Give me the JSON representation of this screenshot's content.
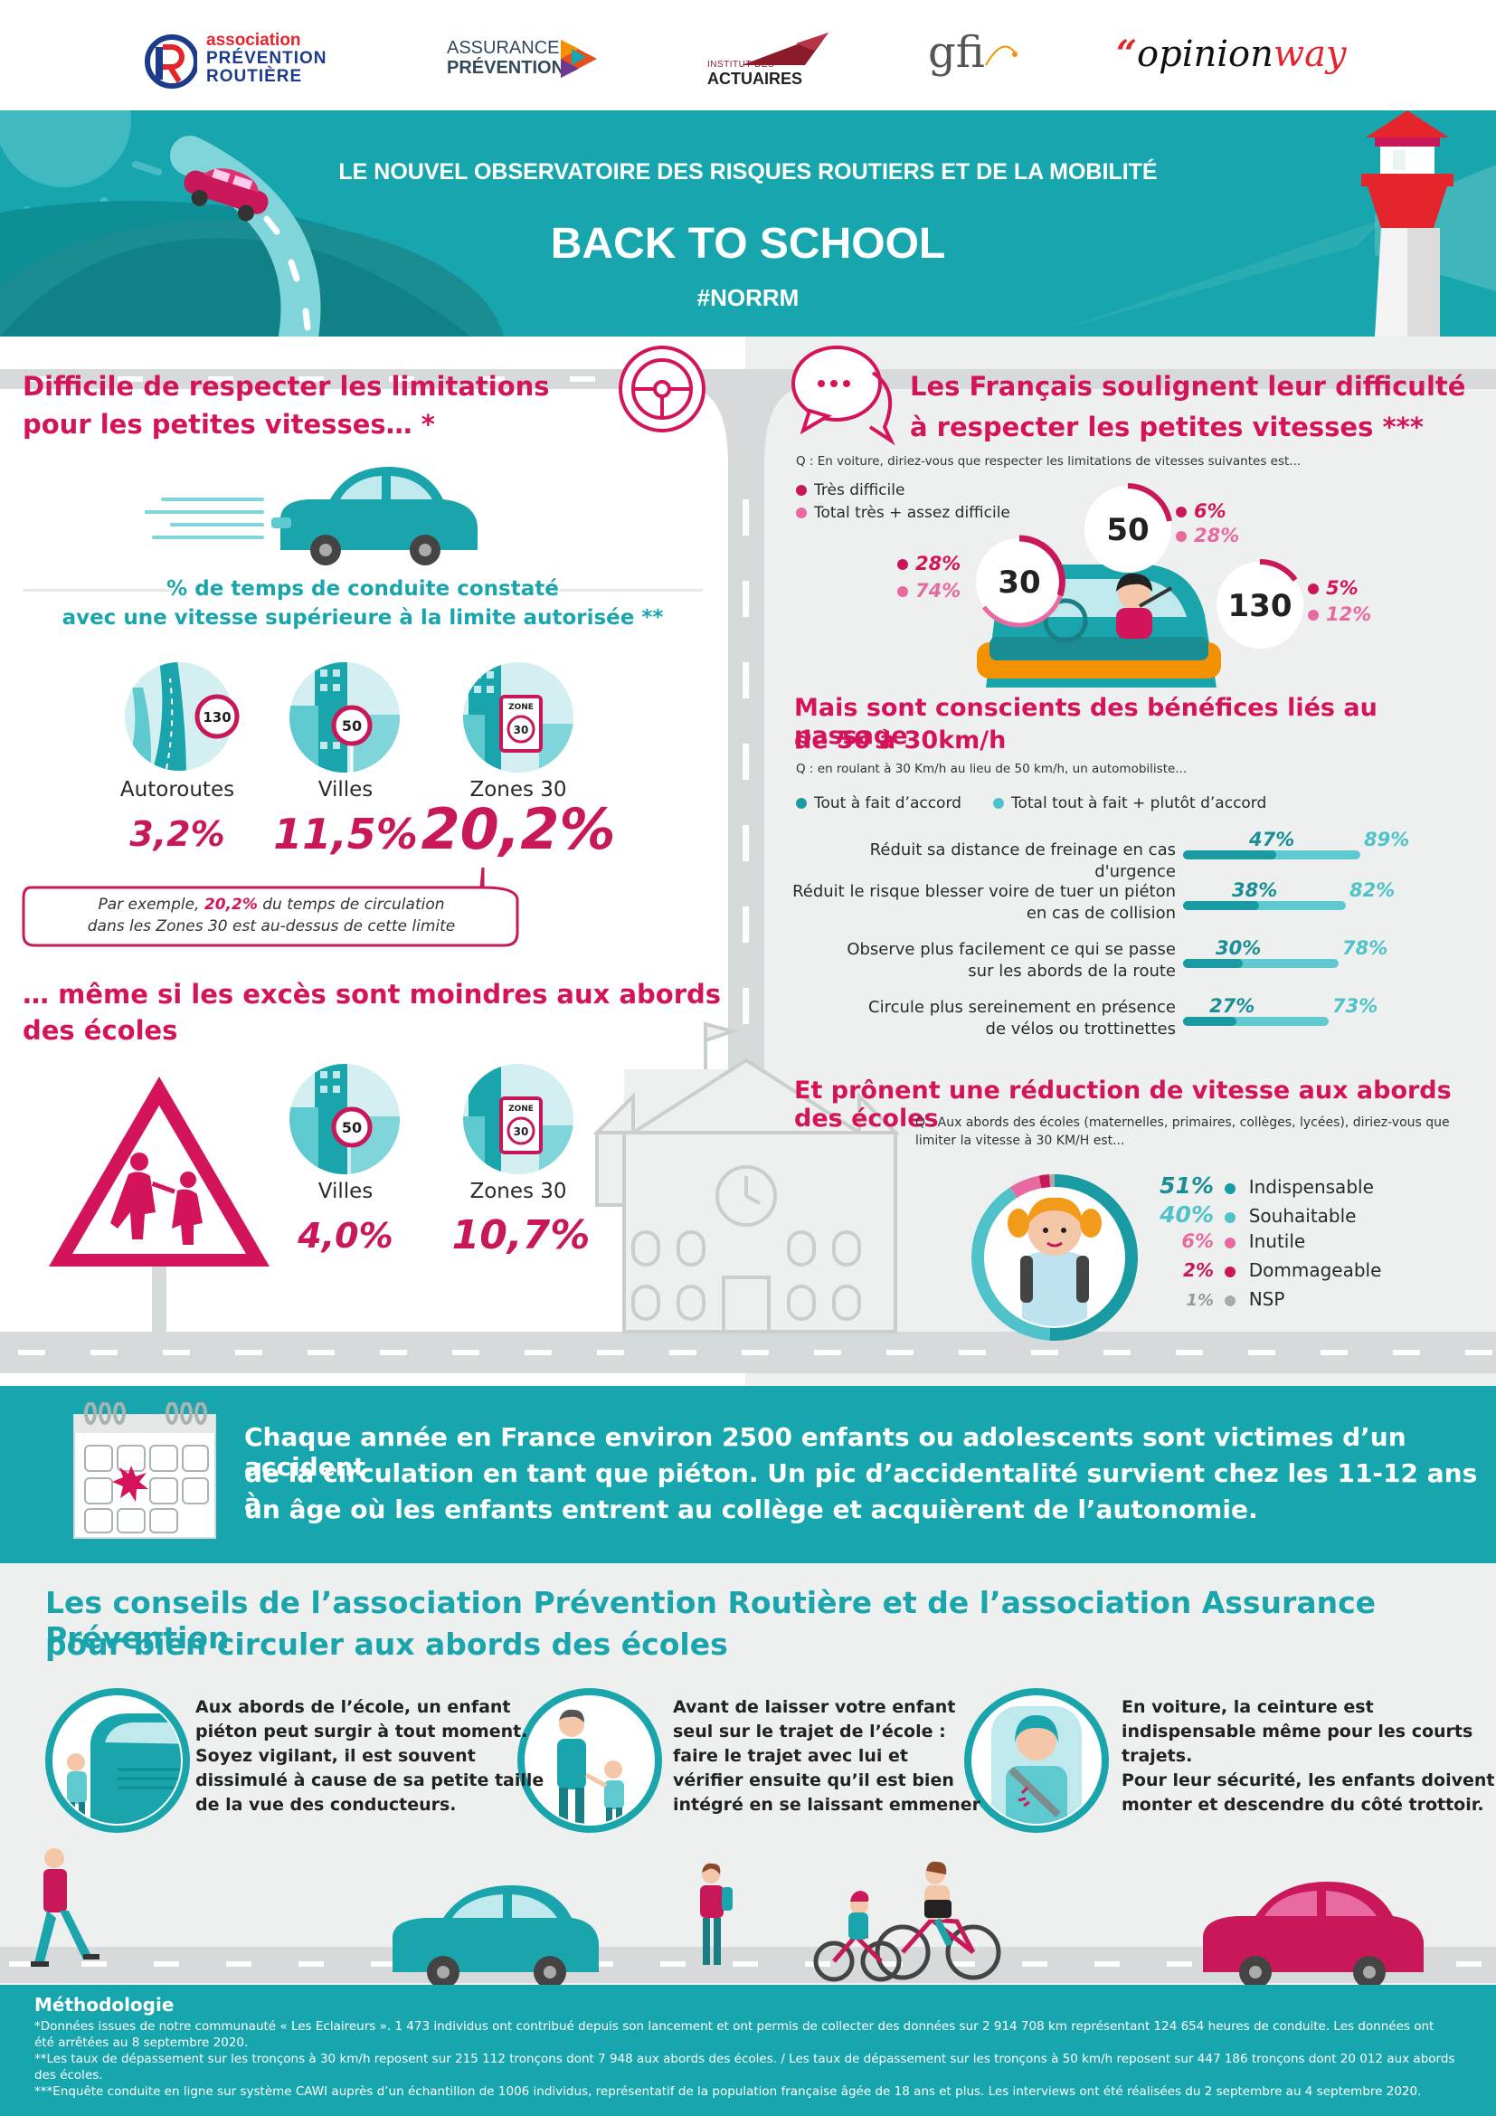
{
  "logos": {
    "apr_line1": "association",
    "apr_line2": "PRÉVENTION",
    "apr_line3": "ROUTIÈRE",
    "ap_line1": "ASSURANCE",
    "ap_line2": "PRÉVENTION",
    "ia_line1": "INSTITUT DES",
    "ia_line2": "ACTUAIRES",
    "gfi": "gfi",
    "opinionway_open": "“",
    "opinionway_a": "opinion",
    "opinionway_b": "way"
  },
  "banner": {
    "subtitle": "LE NOUVEL OBSERVATOIRE DES RISQUES ROUTIERS ET DE LA MOBILITÉ",
    "title": "BACK TO SCHOOL",
    "hashtag": "#NORRM"
  },
  "left": {
    "heading_line1": "Difficile de respecter les limitations",
    "heading_line2": "pour les petites vitesses… *",
    "subheading_line1": "% de temps de conduite constaté",
    "subheading_line2": "avec une vitesse supérieure à la limite autorisée **",
    "cat1": {
      "label": "Autoroutes",
      "value": "3,2%",
      "sign": "130"
    },
    "cat2": {
      "label": "Villes",
      "value": "11,5%",
      "sign": "50"
    },
    "cat3": {
      "label": "Zones 30",
      "value": "20,2%",
      "sign": "30",
      "zone": "ZONE"
    },
    "note_prefix": "Par exemple, ",
    "note_highlight": "20,2%",
    "note_suffix": " du temps de circulation",
    "note_line2": "dans les Zones 30 est au-dessus de cette limite",
    "heading2_line1": "… même si les excès sont moindres aux abords",
    "heading2_line2": "des écoles",
    "cat4": {
      "label": "Villes",
      "value": "4,0%",
      "sign": "50"
    },
    "cat5": {
      "label": "Zones 30",
      "value": "10,7%",
      "sign": "30",
      "zone": "ZONE"
    }
  },
  "right": {
    "heading_line1": "Les Français soulignent leur difficulté",
    "heading_line2": "à respecter les petites vitesses ***",
    "question1": "Q : En voiture, diriez-vous que respecter les limitations de vitesses suivantes est...",
    "legend1": "Très difficile",
    "legend2": "Total très + assez difficile",
    "speeds": [
      {
        "speed": "50",
        "a": "6%",
        "b": "28%"
      },
      {
        "speed": "30",
        "a": "28%",
        "b": "74%"
      },
      {
        "speed": "130",
        "a": "5%",
        "b": "12%"
      }
    ],
    "heading2_line1": "Mais sont conscients des bénéfices liés au passage",
    "heading2_line2": "de 50 à 30km/h",
    "question2": "Q : en roulant à 30 Km/h au lieu de 50 km/h, un automobiliste...",
    "legend3": "Tout à fait d’accord",
    "legend4": "Total tout à fait + plutôt d’accord",
    "bars": [
      {
        "label1": "Réduit sa distance de freinage en cas d'urgence",
        "label2": "",
        "a": "47%",
        "b": "89%",
        "va": 47,
        "vb": 89
      },
      {
        "label1": "Réduit le risque blesser voire de tuer un piéton",
        "label2": "en cas de collision",
        "a": "38%",
        "b": "82%",
        "va": 38,
        "vb": 82
      },
      {
        "label1": "Observe plus facilement ce qui se passe",
        "label2": "sur les abords de la route",
        "a": "30%",
        "b": "78%",
        "va": 30,
        "vb": 78
      },
      {
        "label1": "Circule plus sereinement en présence",
        "label2": "de vélos ou trottinettes",
        "a": "27%",
        "b": "73%",
        "va": 27,
        "vb": 73
      }
    ],
    "heading3": "Et prônent une réduction de vitesse aux abords des écoles",
    "question3_line1": "Q : Aux abords des écoles (maternelles, primaires, collèges, lycées), diriez-vous que",
    "question3_line2": "limiter la vitesse à 30 KM/H est...",
    "donut": [
      {
        "pct": "51%",
        "label": "Indispensable",
        "value": 51,
        "color": "#1a9aa2"
      },
      {
        "pct": "40%",
        "label": "Souhaitable",
        "value": 40,
        "color": "#4fc3c9"
      },
      {
        "pct": "6%",
        "label": "Inutile",
        "value": 6,
        "color": "#e86aa0"
      },
      {
        "pct": "2%",
        "label": "Dommageable",
        "value": 2,
        "color": "#c8185a"
      },
      {
        "pct": "1%",
        "label": "NSP",
        "value": 1,
        "color": "#aaaaaa"
      }
    ]
  },
  "callout": {
    "line1": "Chaque année en France environ 2500 enfants ou adolescents sont victimes d’un accident",
    "line2": "de la circulation en tant que piéton. Un  pic  d’accidentalité survient chez les 11-12 ans à",
    "line3": "un âge où les enfants entrent au collège et acquièrent de l’autonomie."
  },
  "tips": {
    "heading_line1": "Les conseils de l’association Prévention Routière et de l’association Assurance Prévention",
    "heading_line2": "pour bien circuler aux abords des écoles",
    "tip1": [
      "Aux abords de l’école, un enfant",
      "piéton peut surgir à tout moment.",
      "Soyez vigilant, il est souvent",
      "dissimulé à cause de sa petite taille",
      "de la vue des conducteurs."
    ],
    "tip2": [
      "Avant de laisser votre enfant",
      "seul sur le trajet de l’école :",
      "faire le trajet avec lui et",
      "vérifier ensuite qu’il est bien",
      "intégré en se laissant emmener"
    ],
    "tip3": [
      "En voiture, la ceinture est",
      "indispensable même pour les courts",
      "trajets.",
      "Pour leur sécurité, les enfants doivent",
      "monter et descendre du côté trottoir."
    ]
  },
  "method": {
    "title": "Méthodologie",
    "line1": "*Données issues de notre communauté « Les Eclaireurs ». 1 473 individus ont contribué depuis son lancement et ont permis de collecter des données sur 2 914 708  km représentant 124 654 heures de conduite. Les données ont",
    "line2": "été arrêtées au 8 septembre 2020.",
    "line3": "**Les taux de dépassement sur les  tronçons à 30 km/h reposent sur 215 112 tronçons dont 7 948 aux abords des écoles.  / Les taux de dépassement sur les  tronçons à 50 km/h reposent sur 447 186 tronçons dont 20 012 aux abords",
    "line4": "des écoles.",
    "line5": "***Enquête conduite en ligne sur système CAWI auprès d’un échantillon de 1006 individus, représentatif de la population française âgée de 18 ans et plus. Les interviews ont été réalisées du 2 septembre au 4 septembre 2020."
  },
  "colors": {
    "teal": "#1aa5ad",
    "magenta": "#d4145a",
    "road": "#d6dada"
  }
}
